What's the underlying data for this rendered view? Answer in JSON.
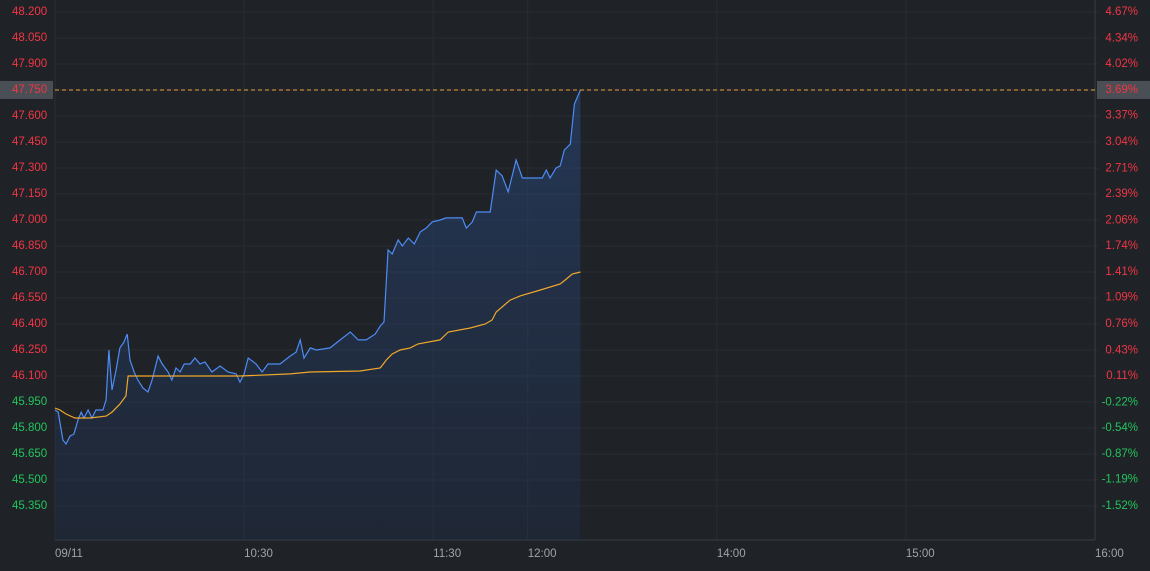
{
  "chart_data": {
    "type": "line",
    "up_color": "#f23645",
    "down_color": "#22c55e",
    "grid": true,
    "xlim": [
      0,
      330
    ],
    "xticks": [
      {
        "value": 0,
        "label": "09/11"
      },
      {
        "value": 60,
        "label": "10:30"
      },
      {
        "value": 120,
        "label": "11:30"
      },
      {
        "value": 150,
        "label": "12:00"
      },
      {
        "value": 210,
        "label": "14:00"
      },
      {
        "value": 270,
        "label": "15:00"
      },
      {
        "value": 330,
        "label": "16:00"
      }
    ],
    "ylim": [
      45.154,
      48.269
    ],
    "yticks": [
      {
        "value": 48.2,
        "label": "48.200"
      },
      {
        "value": 48.05,
        "label": "48.050"
      },
      {
        "value": 47.9,
        "label": "47.900"
      },
      {
        "value": 47.75,
        "label": "47.750"
      },
      {
        "value": 47.6,
        "label": "47.600"
      },
      {
        "value": 47.45,
        "label": "47.450"
      },
      {
        "value": 47.3,
        "label": "47.300"
      },
      {
        "value": 47.15,
        "label": "47.150"
      },
      {
        "value": 47.0,
        "label": "47.000"
      },
      {
        "value": 46.85,
        "label": "46.850"
      },
      {
        "value": 46.7,
        "label": "46.700"
      },
      {
        "value": 46.55,
        "label": "46.550"
      },
      {
        "value": 46.4,
        "label": "46.400"
      },
      {
        "value": 46.25,
        "label": "46.250"
      },
      {
        "value": 46.1,
        "label": "46.100"
      },
      {
        "value": 45.95,
        "label": "45.950"
      },
      {
        "value": 45.8,
        "label": "45.800"
      },
      {
        "value": 45.65,
        "label": "45.650"
      },
      {
        "value": 45.5,
        "label": "45.500"
      },
      {
        "value": 45.35,
        "label": "45.350"
      }
    ],
    "y2lim": [
      -1.946,
      4.819
    ],
    "y2ticks": [
      {
        "value": 4.67,
        "label": "4.67%"
      },
      {
        "value": 4.34,
        "label": "4.34%"
      },
      {
        "value": 4.02,
        "label": "4.02%"
      },
      {
        "value": 3.69,
        "label": "3.69%"
      },
      {
        "value": 3.37,
        "label": "3.37%"
      },
      {
        "value": 3.04,
        "label": "3.04%"
      },
      {
        "value": 2.71,
        "label": "2.71%"
      },
      {
        "value": 2.39,
        "label": "2.39%"
      },
      {
        "value": 2.06,
        "label": "2.06%"
      },
      {
        "value": 1.74,
        "label": "1.74%"
      },
      {
        "value": 1.41,
        "label": "1.41%"
      },
      {
        "value": 1.09,
        "label": "1.09%"
      },
      {
        "value": 0.76,
        "label": "0.76%"
      },
      {
        "value": 0.43,
        "label": "0.43%"
      },
      {
        "value": 0.11,
        "label": "0.11%"
      },
      {
        "value": -0.22,
        "label": "-0.22%"
      },
      {
        "value": -0.54,
        "label": "-0.54%"
      },
      {
        "value": -0.87,
        "label": "-0.87%"
      },
      {
        "value": -1.19,
        "label": "-1.19%"
      },
      {
        "value": -1.52,
        "label": "-1.52%"
      }
    ],
    "last_price": {
      "value": 47.75,
      "label": "47.750",
      "color": "#e8a33d"
    },
    "last_change": {
      "value": 3.69,
      "label": "3.69%"
    },
    "series": [
      {
        "color": "#4d8cf5",
        "fill": true,
        "x": [
          0,
          1,
          2.5,
          3.5,
          4.8,
          6,
          7.3,
          8.3,
          9.2,
          10.5,
          11.7,
          13,
          15.2,
          16.2,
          17.1,
          18.1,
          19.4,
          20.6,
          21.9,
          22.9,
          23.8,
          25.1,
          26.3,
          27.9,
          29.5,
          30.8,
          32.7,
          34,
          35.9,
          37.1,
          38.4,
          39.7,
          41,
          42.9,
          44.4,
          46,
          47.6,
          49.8,
          52.4,
          54.9,
          57.5,
          58.7,
          60,
          61.3,
          63.8,
          65.7,
          67.6,
          71.4,
          74.6,
          76.5,
          77.8,
          79,
          81,
          82.9,
          87.3,
          90.5,
          93.7,
          96.2,
          98.7,
          101.6,
          103.2,
          104.4,
          105.7,
          107,
          108.9,
          110.2,
          112.1,
          114,
          115.9,
          117.8,
          119.7,
          122.2,
          124.1,
          129.2,
          130.5,
          132.4,
          133.7,
          138.1,
          140,
          141.9,
          143.8,
          146.3,
          148.3,
          150.2,
          154.6,
          155.9,
          157.1,
          159,
          160.3,
          161.6,
          163.5,
          164.8,
          166.7
        ],
        "values": [
          45.904,
          45.892,
          45.731,
          45.708,
          45.754,
          45.765,
          45.846,
          45.892,
          45.858,
          45.904,
          45.858,
          45.904,
          45.904,
          45.962,
          46.25,
          46.019,
          46.135,
          46.262,
          46.296,
          46.342,
          46.192,
          46.123,
          46.077,
          46.031,
          46.008,
          46.077,
          46.215,
          46.169,
          46.123,
          46.077,
          46.146,
          46.123,
          46.169,
          46.169,
          46.204,
          46.169,
          46.181,
          46.123,
          46.158,
          46.123,
          46.112,
          46.065,
          46.112,
          46.204,
          46.169,
          46.123,
          46.169,
          46.169,
          46.215,
          46.238,
          46.308,
          46.204,
          46.262,
          46.25,
          46.262,
          46.308,
          46.354,
          46.308,
          46.308,
          46.342,
          46.388,
          46.412,
          46.827,
          46.804,
          46.885,
          46.85,
          46.896,
          46.862,
          46.931,
          46.954,
          46.989,
          47.0,
          47.012,
          47.012,
          46.954,
          46.989,
          47.046,
          47.046,
          47.288,
          47.254,
          47.162,
          47.346,
          47.242,
          47.242,
          47.242,
          47.288,
          47.242,
          47.3,
          47.312,
          47.404,
          47.438,
          47.669,
          47.75
        ]
      },
      {
        "color": "#f0a82a",
        "fill": false,
        "x": [
          0,
          1.6,
          3.5,
          6.3,
          11.1,
          16.2,
          18.1,
          20.6,
          22.5,
          23.2,
          30.2,
          46,
          58.7,
          74.6,
          81,
          96.8,
          103.2,
          105.1,
          107,
          109.5,
          112.7,
          115.2,
          122.2,
          124.8,
          131.7,
          136.5,
          138.7,
          140,
          144.4,
          147.6,
          154,
          160.3,
          161.9,
          164.1,
          166.7
        ],
        "values": [
          45.915,
          45.904,
          45.881,
          45.858,
          45.858,
          45.869,
          45.892,
          45.938,
          45.985,
          46.1,
          46.1,
          46.1,
          46.1,
          46.112,
          46.123,
          46.129,
          46.146,
          46.192,
          46.227,
          46.25,
          46.262,
          46.285,
          46.308,
          46.354,
          46.377,
          46.4,
          46.423,
          46.469,
          46.538,
          46.562,
          46.596,
          46.631,
          46.654,
          46.688,
          46.7
        ]
      }
    ]
  }
}
